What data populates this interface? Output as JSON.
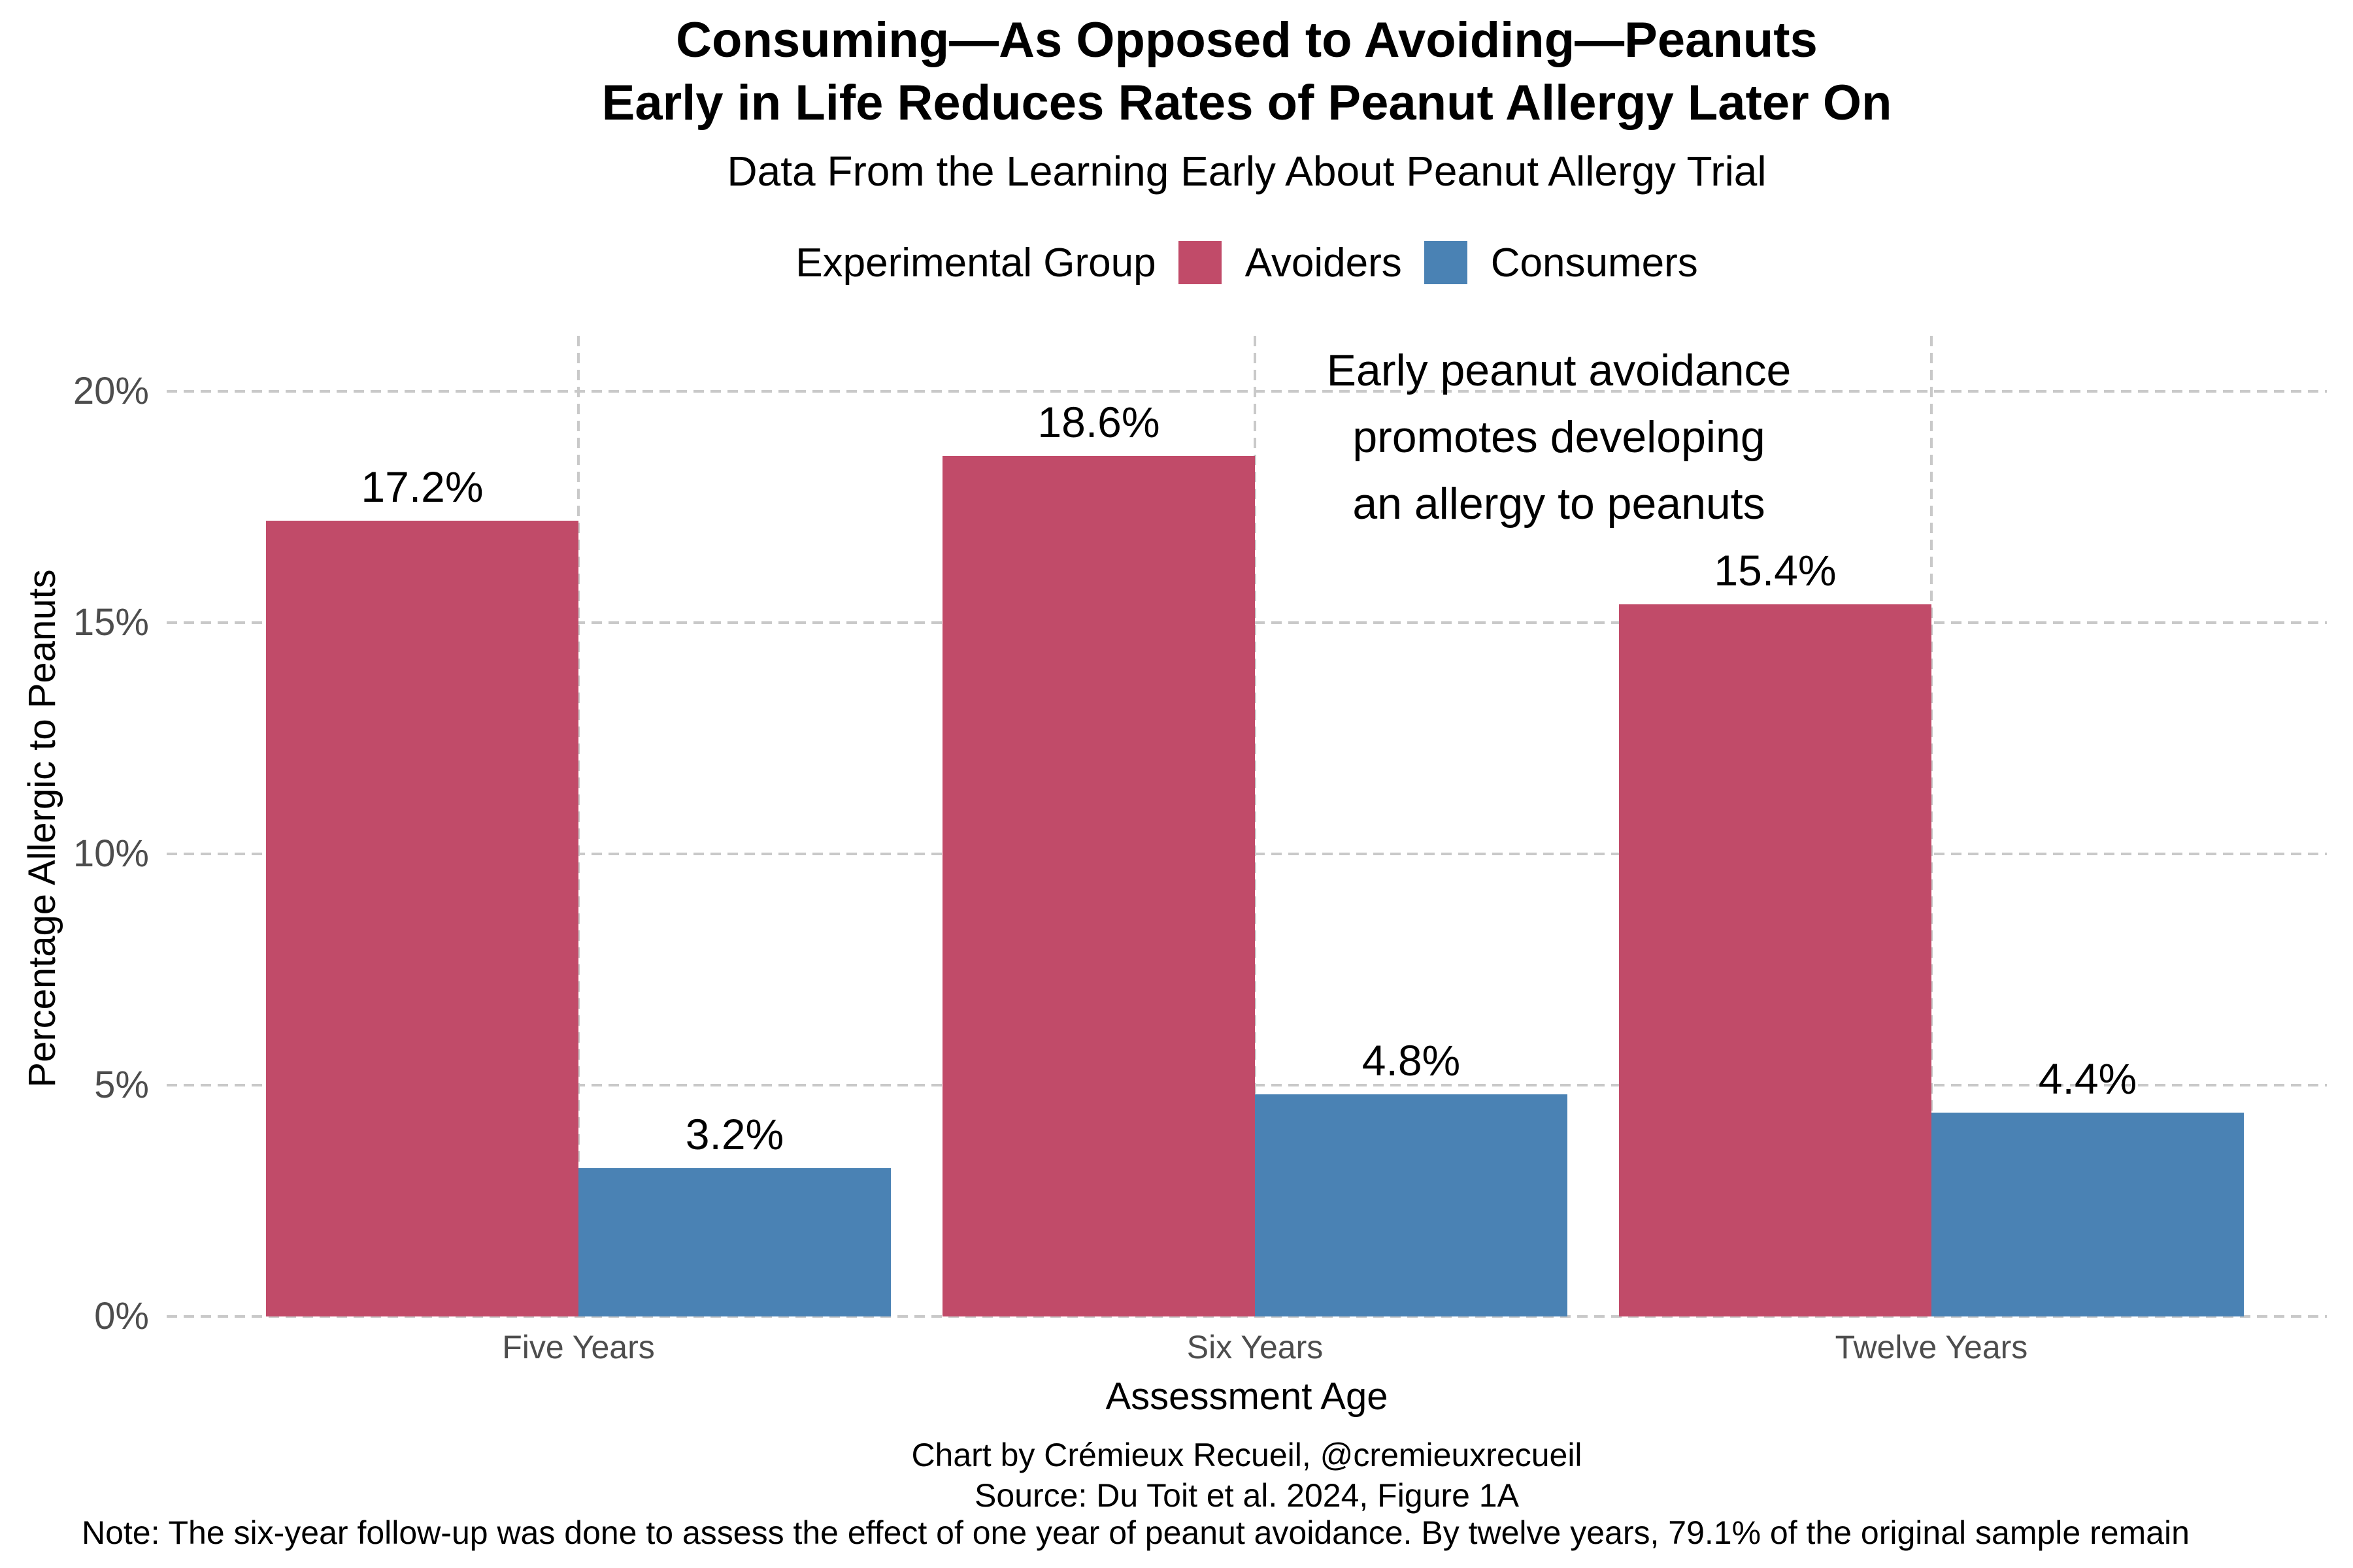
{
  "header": {
    "title_line1": "Consuming—As Opposed to Avoiding—Peanuts",
    "title_line2": "Early in Life Reduces Rates of Peanut Allergy Later On",
    "subtitle": "Data From the Learning Early About Peanut Allergy Trial",
    "legend": {
      "title": "Experimental Group",
      "items": [
        {
          "label": "Avoiders",
          "color": "#C14B69"
        },
        {
          "label": "Consumers",
          "color": "#4A82B4"
        }
      ]
    }
  },
  "chart_data": {
    "type": "bar",
    "categories": [
      "Five Years",
      "Six Years",
      "Twelve Years"
    ],
    "series": [
      {
        "name": "Avoiders",
        "color": "#C14B69",
        "values": [
          17.2,
          18.6,
          15.4
        ],
        "labels": [
          "17.2%",
          "18.6%",
          "15.4%"
        ]
      },
      {
        "name": "Consumers",
        "color": "#4A82B4",
        "values": [
          3.2,
          4.8,
          4.4
        ],
        "labels": [
          "3.2%",
          "4.8%",
          "4.4%"
        ]
      }
    ],
    "xlabel": "Assessment Age",
    "ylabel": "Percentage Allergic to Peanuts",
    "ylim": [
      0,
      21.2
    ],
    "yticks": [
      0,
      5,
      10,
      15,
      20
    ],
    "ytick_labels": [
      "0%",
      "5%",
      "10%",
      "15%",
      "20%"
    ],
    "grid": "dashed",
    "legend_position": "top",
    "annotation": {
      "line1": "Early peanut avoidance",
      "line2": "promotes developing",
      "line3": "an allergy to peanuts"
    }
  },
  "footer": {
    "caption_line1": "Chart by Crémieux Recueil, @cremieuxrecueil",
    "caption_line2": "Source: Du Toit et al. 2024, Figure 1A",
    "note": "Note: The six-year follow-up was done to assess the effect of one year of peanut avoidance. By twelve years, 79.1% of the original sample remain"
  },
  "colors": {
    "avoiders": "#C14B69",
    "consumers": "#4A82B4",
    "gridline": "#C9C9C9",
    "tick_text": "#4D4D4D",
    "background": "#FFFFFF"
  }
}
